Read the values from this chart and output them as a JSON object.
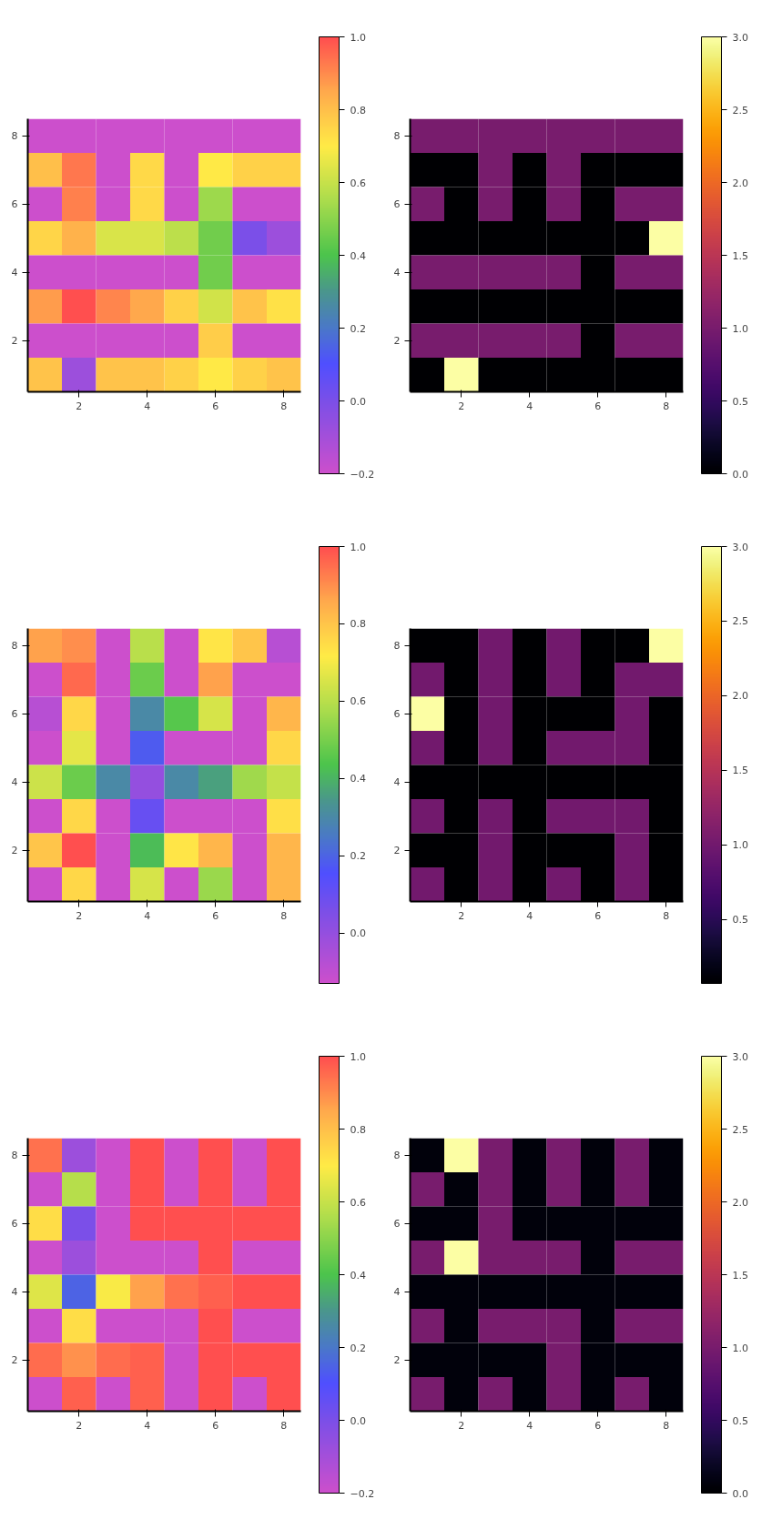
{
  "chart_data": [
    {
      "type": "heatmap",
      "categories": [
        null,
        "2",
        null,
        "4",
        null,
        "6",
        null,
        "8"
      ],
      "y_categories": [
        "8",
        null,
        "6",
        null,
        "4",
        null,
        "2",
        null
      ],
      "clim": [
        -0.2,
        1.0
      ],
      "cticks": [
        {
          "value": -0.2,
          "label": "−0.2"
        },
        {
          "value": 0.0,
          "label": "0.0"
        },
        {
          "value": 0.2,
          "label": "0.2"
        },
        {
          "value": 0.4,
          "label": "0.4"
        },
        {
          "value": 0.6,
          "label": "0.6"
        },
        {
          "value": 0.8,
          "label": "0.8"
        },
        {
          "value": 1.0,
          "label": "1.0"
        }
      ],
      "cells": [
        [
          -0.2,
          -0.2,
          -0.2,
          -0.2,
          -0.2,
          -0.2,
          -0.2,
          -0.2
        ],
        [
          0.8,
          0.93,
          -0.2,
          0.74,
          -0.2,
          0.7,
          0.76,
          0.76
        ],
        [
          -0.2,
          0.92,
          -0.2,
          0.74,
          -0.2,
          0.53,
          -0.2,
          -0.2
        ],
        [
          0.75,
          0.83,
          0.63,
          0.63,
          0.58,
          0.46,
          0.0,
          -0.08
        ],
        [
          -0.2,
          -0.2,
          -0.2,
          -0.2,
          -0.2,
          0.46,
          -0.2,
          -0.2
        ],
        [
          0.87,
          1.0,
          0.91,
          0.85,
          0.76,
          0.62,
          0.79,
          0.72
        ],
        [
          -0.2,
          -0.2,
          -0.2,
          -0.2,
          -0.2,
          0.77,
          -0.2,
          -0.2
        ],
        [
          0.79,
          -0.08,
          0.79,
          0.79,
          0.76,
          0.7,
          0.76,
          0.79
        ]
      ]
    },
    {
      "type": "heatmap",
      "categories": [
        null,
        "2",
        null,
        "4",
        null,
        "6",
        null,
        "8"
      ],
      "y_categories": [
        "8",
        null,
        "6",
        null,
        "4",
        null,
        "2",
        null
      ],
      "clim": [
        0.0,
        3.0
      ],
      "cticks": [
        {
          "value": 0.0,
          "label": "0.0"
        },
        {
          "value": 0.5,
          "label": "0.5"
        },
        {
          "value": 1.0,
          "label": "1.0"
        },
        {
          "value": 1.5,
          "label": "1.5"
        },
        {
          "value": 2.0,
          "label": "2.0"
        },
        {
          "value": 2.5,
          "label": "2.5"
        },
        {
          "value": 3.0,
          "label": "3.0"
        }
      ],
      "cells": [
        [
          1,
          1,
          1,
          1,
          1,
          1,
          1,
          1
        ],
        [
          0,
          0,
          1,
          0,
          1,
          0,
          0,
          0
        ],
        [
          1,
          0,
          1,
          0,
          1,
          0,
          1,
          1
        ],
        [
          0,
          0,
          0,
          0,
          0,
          0,
          0,
          3
        ],
        [
          1,
          1,
          1,
          1,
          1,
          0,
          1,
          1
        ],
        [
          0,
          0,
          0,
          0,
          0,
          0,
          0,
          0
        ],
        [
          1,
          1,
          1,
          1,
          1,
          0,
          1,
          1
        ],
        [
          0,
          3,
          0,
          0,
          0,
          0,
          0,
          0
        ]
      ]
    },
    {
      "type": "heatmap",
      "categories": [
        null,
        "2",
        null,
        "4",
        null,
        "6",
        null,
        "8"
      ],
      "y_categories": [
        "8",
        null,
        "6",
        null,
        "4",
        null,
        "2",
        null
      ],
      "clim": [
        -0.13,
        1.0
      ],
      "cticks": [
        {
          "value": 0.0,
          "label": "0.0"
        },
        {
          "value": 0.2,
          "label": "0.2"
        },
        {
          "value": 0.4,
          "label": "0.4"
        },
        {
          "value": 0.6,
          "label": "0.6"
        },
        {
          "value": 0.8,
          "label": "0.8"
        },
        {
          "value": 1.0,
          "label": "1.0"
        }
      ],
      "cells": [
        [
          0.87,
          0.9,
          -0.13,
          0.6,
          -0.13,
          0.73,
          0.8,
          -0.08
        ],
        [
          -0.13,
          0.96,
          -0.13,
          0.48,
          -0.13,
          0.87,
          -0.13,
          -0.13
        ],
        [
          -0.08,
          0.76,
          -0.13,
          0.3,
          0.45,
          0.65,
          -0.13,
          0.83
        ],
        [
          -0.13,
          0.67,
          -0.13,
          0.18,
          -0.13,
          -0.13,
          -0.13,
          0.76
        ],
        [
          0.63,
          0.48,
          0.3,
          0.0,
          0.3,
          0.36,
          0.56,
          0.62
        ],
        [
          -0.13,
          0.76,
          -0.13,
          0.1,
          -0.13,
          -0.13,
          -0.13,
          0.74
        ],
        [
          0.8,
          1.0,
          -0.13,
          0.42,
          0.73,
          0.83,
          -0.13,
          0.83
        ],
        [
          -0.13,
          0.76,
          -0.13,
          0.65,
          -0.13,
          0.55,
          -0.13,
          0.83
        ]
      ]
    },
    {
      "type": "heatmap",
      "categories": [
        null,
        "2",
        null,
        "4",
        null,
        "6",
        null,
        "8"
      ],
      "y_categories": [
        "8",
        null,
        "6",
        null,
        "4",
        null,
        "2",
        null
      ],
      "clim": [
        0.07,
        3.0
      ],
      "cticks": [
        {
          "value": 0.5,
          "label": "0.5"
        },
        {
          "value": 1.0,
          "label": "1.0"
        },
        {
          "value": 1.5,
          "label": "1.5"
        },
        {
          "value": 2.0,
          "label": "2.0"
        },
        {
          "value": 2.5,
          "label": "2.5"
        },
        {
          "value": 3.0,
          "label": "3.0"
        }
      ],
      "cells": [
        [
          0.07,
          0.07,
          1,
          0.07,
          1,
          0.07,
          0.07,
          3
        ],
        [
          1,
          0.07,
          1,
          0.07,
          1,
          0.07,
          1,
          1
        ],
        [
          3,
          0.07,
          1,
          0.07,
          0.07,
          0.07,
          1,
          0.07
        ],
        [
          1,
          0.07,
          1,
          0.07,
          1,
          1,
          1,
          0.07
        ],
        [
          0.07,
          0.07,
          0.07,
          0.07,
          0.07,
          0.07,
          0.07,
          0.07
        ],
        [
          1,
          0.07,
          1,
          0.07,
          1,
          1,
          1,
          0.07
        ],
        [
          0.07,
          0.07,
          1,
          0.07,
          0.07,
          0.07,
          1,
          0.07
        ],
        [
          1,
          0.07,
          1,
          0.07,
          1,
          0.07,
          1,
          0.07
        ]
      ]
    },
    {
      "type": "heatmap",
      "categories": [
        null,
        "2",
        null,
        "4",
        null,
        "6",
        null,
        "8"
      ],
      "y_categories": [
        "8",
        null,
        "6",
        null,
        "4",
        null,
        "2",
        null
      ],
      "clim": [
        -0.2,
        1.0
      ],
      "cticks": [
        {
          "value": -0.2,
          "label": "−0.2"
        },
        {
          "value": 0.0,
          "label": "0.0"
        },
        {
          "value": 0.2,
          "label": "0.2"
        },
        {
          "value": 0.4,
          "label": "0.4"
        },
        {
          "value": 0.6,
          "label": "0.6"
        },
        {
          "value": 0.8,
          "label": "0.8"
        },
        {
          "value": 1.0,
          "label": "1.0"
        }
      ],
      "cells": [
        [
          0.94,
          -0.08,
          -0.2,
          1.0,
          -0.2,
          1.0,
          -0.2,
          1.0
        ],
        [
          -0.2,
          0.57,
          -0.2,
          1.0,
          -0.2,
          1.0,
          -0.2,
          1.0
        ],
        [
          0.73,
          0.0,
          -0.2,
          1.0,
          1.0,
          1.0,
          1.0,
          1.0
        ],
        [
          -0.2,
          -0.08,
          -0.2,
          -0.2,
          -0.2,
          1.0,
          -0.2,
          -0.2
        ],
        [
          0.64,
          0.15,
          0.69,
          0.86,
          0.94,
          0.97,
          1.0,
          1.0
        ],
        [
          -0.2,
          0.73,
          -0.2,
          -0.2,
          -0.2,
          1.0,
          -0.2,
          -0.2
        ],
        [
          0.95,
          0.89,
          0.95,
          0.97,
          -0.2,
          1.0,
          1.0,
          1.0
        ],
        [
          -0.2,
          0.97,
          -0.2,
          0.97,
          -0.2,
          1.0,
          -0.2,
          1.0
        ]
      ]
    },
    {
      "type": "heatmap",
      "categories": [
        null,
        "2",
        null,
        "4",
        null,
        "6",
        null,
        "8"
      ],
      "y_categories": [
        "8",
        null,
        "6",
        null,
        "4",
        null,
        "2",
        null
      ],
      "clim": [
        0.0,
        3.0
      ],
      "cticks": [
        {
          "value": 0.0,
          "label": "0.0"
        },
        {
          "value": 0.5,
          "label": "0.5"
        },
        {
          "value": 1.0,
          "label": "1.0"
        },
        {
          "value": 1.5,
          "label": "1.5"
        },
        {
          "value": 2.0,
          "label": "2.0"
        },
        {
          "value": 2.5,
          "label": "2.5"
        },
        {
          "value": 3.0,
          "label": "3.0"
        }
      ],
      "cells": [
        [
          0.07,
          3,
          1,
          0.07,
          1,
          0.07,
          1,
          0.07
        ],
        [
          1,
          0.07,
          1,
          0.07,
          1,
          0.07,
          1,
          0.07
        ],
        [
          0.07,
          0.07,
          1,
          0.07,
          0.07,
          0.07,
          0.07,
          0.07
        ],
        [
          1,
          3,
          1,
          1,
          1,
          0.07,
          1,
          1
        ],
        [
          0.07,
          0.07,
          0.07,
          0.07,
          0.07,
          0.07,
          0.07,
          0.07
        ],
        [
          1,
          0.07,
          1,
          1,
          1,
          0.07,
          1,
          1
        ],
        [
          0.07,
          0.07,
          0.07,
          0.07,
          1,
          0.07,
          0.07,
          0.07
        ],
        [
          1,
          0.07,
          1,
          0.07,
          1,
          0.07,
          1,
          0.07
        ]
      ]
    }
  ]
}
